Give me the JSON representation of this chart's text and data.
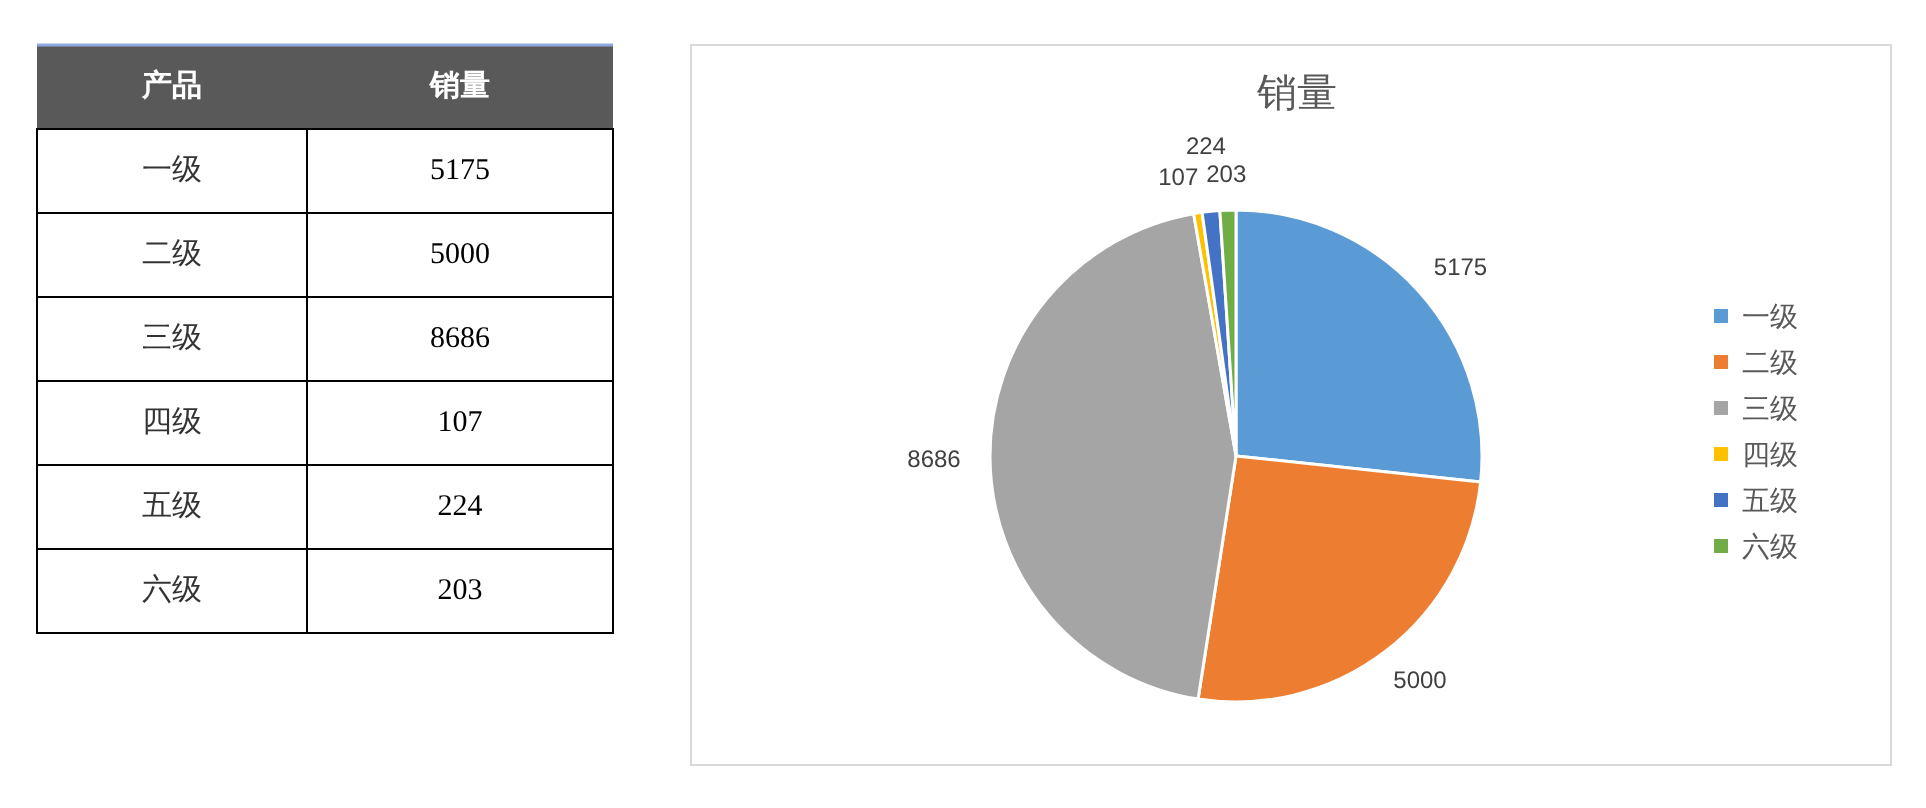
{
  "chart_data": [
    {
      "type": "other",
      "xlabel": "产品",
      "ylabel": "销量",
      "categories": [
        "一级",
        "二级",
        "三级",
        "四级",
        "五级",
        "六级"
      ],
      "values": [
        5175,
        5000,
        8686,
        107,
        224,
        203
      ],
      "data_labels": true
    },
    {
      "type": "pie",
      "title": "销量",
      "categories": [
        "一级",
        "二级",
        "三级",
        "四级",
        "五级",
        "六级"
      ],
      "values": [
        5175,
        5000,
        8686,
        107,
        224,
        203
      ],
      "colors": [
        "#5b9bd5",
        "#ed7d31",
        "#a5a5a5",
        "#ffc000",
        "#4472c4",
        "#70ad47"
      ],
      "data_labels": true,
      "legend": "right"
    }
  ]
}
